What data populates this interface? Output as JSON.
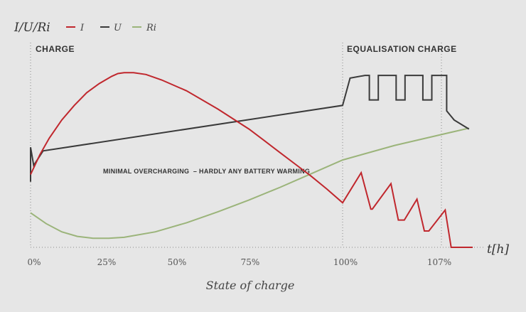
{
  "chart_data": {
    "type": "line",
    "ylabel": "I/U/Ri",
    "xlabel": "State of charge",
    "time_label": "t[h]",
    "legend_position": "top",
    "grid": false,
    "x_ticks": [
      "0%",
      "25%",
      "50%",
      "75%",
      "100%",
      "107%"
    ],
    "x_tick_values": [
      0,
      25,
      50,
      75,
      100,
      107
    ],
    "xlim": [
      0,
      112
    ],
    "ylim": [
      0,
      10
    ],
    "regions": [
      {
        "label": "CHARGE",
        "from": 0,
        "to": 100
      },
      {
        "label": "EQUALISATION CHARGE",
        "from": 100,
        "to": 107
      }
    ],
    "annotation": "MINIMAL OVERCHARGING  – HARDLY ANY BATTERY WARMING",
    "series": [
      {
        "name": "I",
        "color": "#c0272d",
        "x": [
          0,
          3,
          6,
          10,
          14,
          18,
          22,
          26,
          28,
          30,
          33,
          37,
          42,
          50,
          60,
          70,
          75,
          80,
          85,
          90,
          95,
          100,
          100,
          102.5,
          102.5,
          103.8,
          103.8,
          104,
          104,
          106.5,
          106.5,
          107.5,
          107.5,
          108.3,
          108.3,
          110,
          110,
          111,
          111,
          111.6,
          111.6,
          113.8,
          113.8,
          114.6,
          114.6,
          115.5,
          115.5,
          117.5
        ],
        "y": [
          4.0,
          5.1,
          6.0,
          7.0,
          7.8,
          8.5,
          9.0,
          9.4,
          9.55,
          9.6,
          9.6,
          9.5,
          9.2,
          8.6,
          7.6,
          6.5,
          5.85,
          5.2,
          4.55,
          3.9,
          3.2,
          2.45,
          2.45,
          4.1,
          4.1,
          2.1,
          2.1,
          2.1,
          2.1,
          3.5,
          3.5,
          1.5,
          1.5,
          1.5,
          1.5,
          2.65,
          2.65,
          0.9,
          0.9,
          0.9,
          0.9,
          2.05,
          2.05,
          0.0,
          0.0,
          0.0,
          0.0,
          0.0
        ],
        "points_note": ""
      },
      {
        "name": "U",
        "color": "#3a3a3a",
        "x": [
          0,
          0,
          1,
          4,
          100,
          100,
          101,
          103,
          103.6,
          103.6,
          104.8,
          104.8,
          107.2,
          107.2,
          108.4,
          108.4,
          110.8,
          110.8,
          112,
          112,
          114,
          114,
          115,
          117
        ],
        "y": [
          3.6,
          5.5,
          4.5,
          5.3,
          7.8,
          7.8,
          9.3,
          9.45,
          9.45,
          8.1,
          8.1,
          9.45,
          9.45,
          8.1,
          8.1,
          9.45,
          9.45,
          8.1,
          8.1,
          9.45,
          9.45,
          7.5,
          7.0,
          6.5
        ]
      },
      {
        "name": "Ri",
        "color": "#9bb47a",
        "x": [
          0,
          5,
          10,
          15,
          20,
          25,
          30,
          40,
          50,
          60,
          70,
          80,
          90,
          100,
          107,
          117
        ],
        "y": [
          1.9,
          1.3,
          0.85,
          0.6,
          0.5,
          0.5,
          0.55,
          0.85,
          1.35,
          1.95,
          2.6,
          3.3,
          4.05,
          4.8,
          5.6,
          6.55
        ]
      }
    ]
  }
}
